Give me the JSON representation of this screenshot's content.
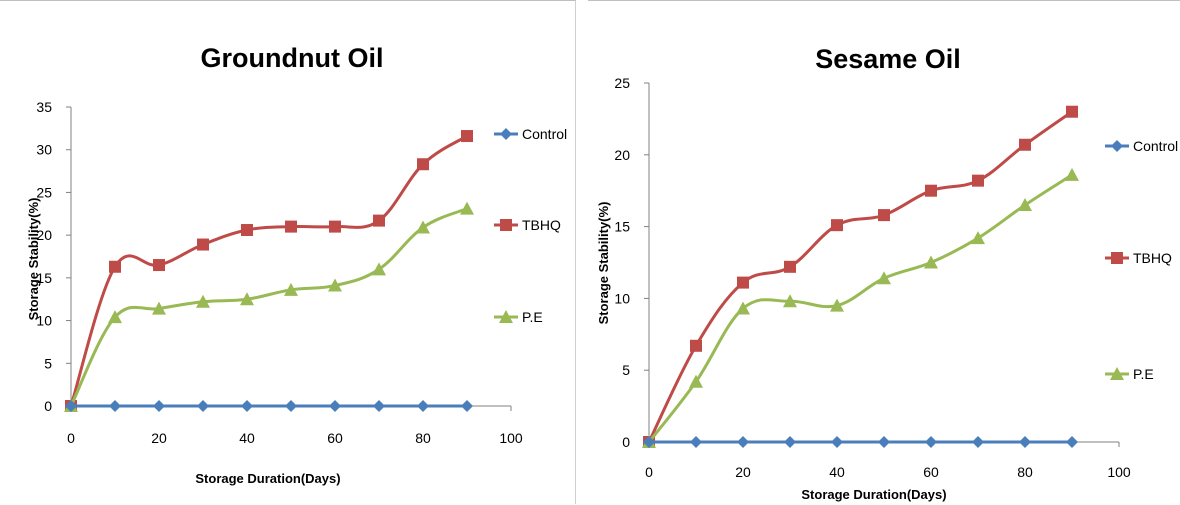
{
  "chart_data": [
    {
      "type": "line",
      "title": "Groundnut Oil",
      "xlabel": "Storage Duration(Days)",
      "ylabel": "Storage Stability(%)",
      "xlim": [
        0,
        100
      ],
      "ylim": [
        0,
        35
      ],
      "x_ticks": [
        0,
        20,
        40,
        60,
        80,
        100
      ],
      "y_ticks": [
        0,
        5,
        10,
        15,
        20,
        25,
        30,
        35
      ],
      "grid": false,
      "legend_position": "right",
      "x": [
        0,
        10,
        20,
        30,
        40,
        50,
        60,
        70,
        80,
        90
      ],
      "series": [
        {
          "name": "Control",
          "color": "#4a7ebb",
          "marker": "diamond",
          "values": [
            0,
            0,
            0,
            0,
            0,
            0,
            0,
            0,
            0,
            0
          ]
        },
        {
          "name": "TBHQ",
          "color": "#be4b48",
          "marker": "square",
          "values": [
            0,
            16.3,
            16.5,
            18.9,
            20.6,
            21.0,
            21.0,
            21.7,
            28.3,
            31.6
          ]
        },
        {
          "name": "P.E",
          "color": "#98b954",
          "marker": "triangle",
          "values": [
            0,
            10.4,
            11.4,
            12.2,
            12.5,
            13.6,
            14.1,
            16.0,
            20.9,
            23.1
          ]
        }
      ]
    },
    {
      "type": "line",
      "title": "Sesame Oil",
      "xlabel": "Storage Duration(Days)",
      "ylabel": "Storage Stability(%)",
      "xlim": [
        0,
        100
      ],
      "ylim": [
        0,
        25
      ],
      "x_ticks": [
        0,
        20,
        40,
        60,
        80,
        100
      ],
      "y_ticks": [
        0,
        5,
        10,
        15,
        20,
        25
      ],
      "grid": false,
      "legend_position": "right",
      "x": [
        0,
        10,
        20,
        30,
        40,
        50,
        60,
        70,
        80,
        90
      ],
      "series": [
        {
          "name": "Control",
          "color": "#4a7ebb",
          "marker": "diamond",
          "values": [
            0,
            0,
            0,
            0,
            0,
            0,
            0,
            0,
            0,
            0
          ]
        },
        {
          "name": "TBHQ",
          "color": "#be4b48",
          "marker": "square",
          "values": [
            0,
            6.7,
            11.1,
            12.2,
            15.1,
            15.8,
            17.5,
            18.2,
            20.7,
            23.0
          ]
        },
        {
          "name": "P.E",
          "color": "#98b954",
          "marker": "triangle",
          "values": [
            0,
            4.2,
            9.3,
            9.8,
            9.5,
            11.4,
            12.5,
            14.2,
            16.5,
            18.6
          ]
        }
      ]
    }
  ]
}
